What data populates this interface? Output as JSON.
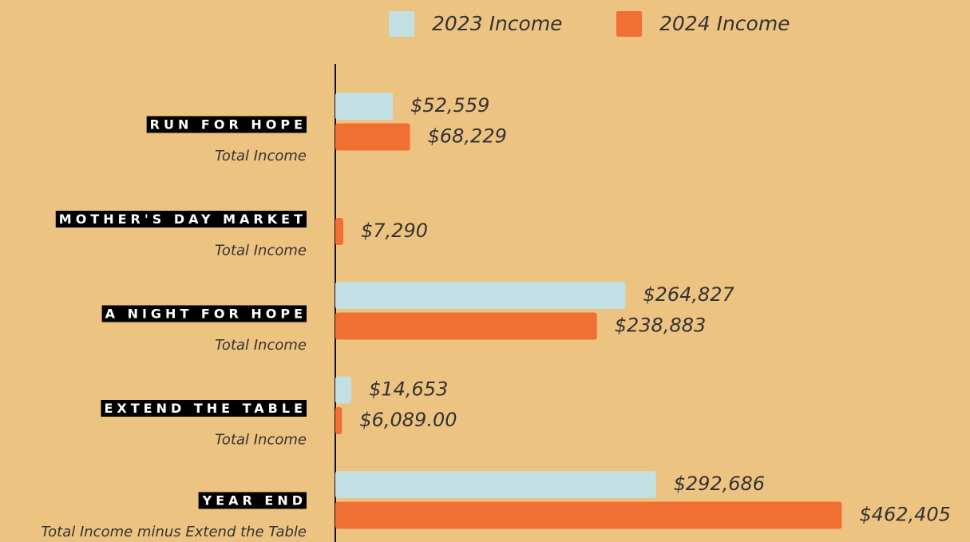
{
  "chart_data": {
    "type": "hbar",
    "categories": [
      "RUN FOR HOPE",
      "MOTHER'S DAY MARKET",
      "A NIGHT FOR HOPE",
      "EXTEND THE TABLE",
      "YEAR END"
    ],
    "category_notes": [
      "Total Income",
      "Total Income",
      "Total Income",
      "Total Income",
      "Total Income minus Extend the Table"
    ],
    "series": [
      {
        "name": "2023 Income",
        "color": "#c2e0e3",
        "values": [
          52559,
          null,
          264827,
          14653,
          292686
        ],
        "value_labels": [
          "$52,559",
          null,
          "$264,827",
          "$14,653",
          "$292,686"
        ]
      },
      {
        "name": "2024 Income",
        "color": "#f26f33",
        "values": [
          68229,
          7290,
          238883,
          6089,
          462405
        ],
        "value_labels": [
          "$68,229",
          "$7,290",
          "$238,883",
          "$6,089.00",
          "$462,405"
        ]
      }
    ],
    "xlim": [
      0,
      500000
    ],
    "legend": "top"
  }
}
